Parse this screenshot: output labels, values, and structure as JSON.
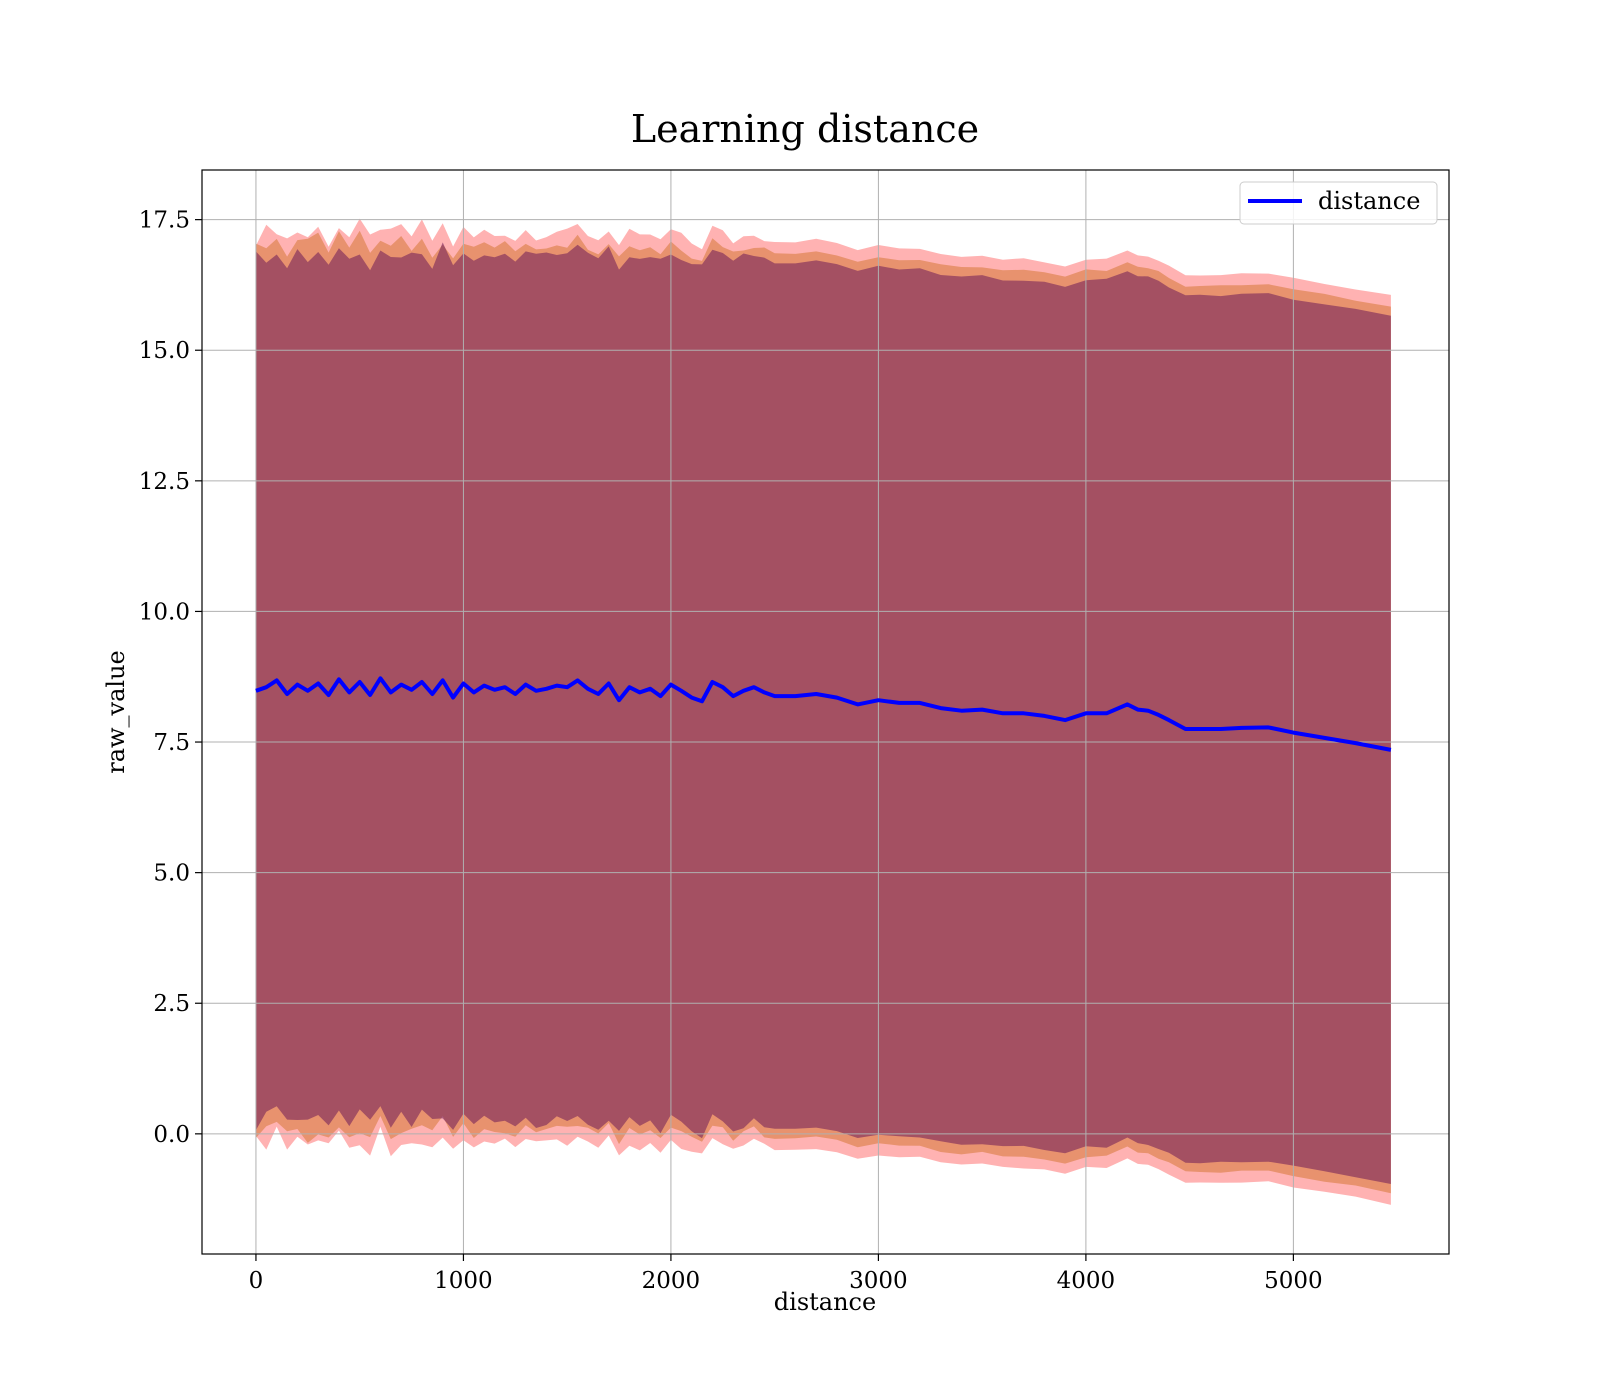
{
  "chart_data": {
    "type": "line",
    "title": "Learning distance",
    "xlabel": "distance",
    "ylabel": "raw_value",
    "xlim": [
      -260,
      5750
    ],
    "ylim": [
      -2.3,
      18.45
    ],
    "grid": true,
    "legend_position": "top-right",
    "x_ticks": [
      0,
      1000,
      2000,
      3000,
      4000,
      5000
    ],
    "y_ticks": [
      0.0,
      2.5,
      5.0,
      7.5,
      10.0,
      12.5,
      15.0,
      17.5
    ],
    "x_tick_labels": [
      "0",
      "1000",
      "2000",
      "3000",
      "4000",
      "5000"
    ],
    "y_tick_labels": [
      "0.0",
      "2.5",
      "5.0",
      "7.5",
      "10.0",
      "12.5",
      "15.0",
      "17.5"
    ],
    "series": [
      {
        "name": "distance",
        "color": "#0000ff",
        "x": [
          0,
          50,
          100,
          150,
          200,
          250,
          300,
          350,
          400,
          450,
          500,
          550,
          600,
          650,
          700,
          750,
          800,
          850,
          900,
          950,
          1000,
          1050,
          1100,
          1150,
          1200,
          1250,
          1300,
          1350,
          1400,
          1450,
          1500,
          1550,
          1600,
          1650,
          1700,
          1750,
          1800,
          1850,
          1900,
          1950,
          2000,
          2050,
          2100,
          2150,
          2200,
          2250,
          2300,
          2350,
          2400,
          2450,
          2500,
          2600,
          2700,
          2800,
          2900,
          3000,
          3100,
          3200,
          3300,
          3400,
          3500,
          3600,
          3700,
          3800,
          3900,
          4000,
          4100,
          4200,
          4250,
          4300,
          4350,
          4400,
          4480,
          4550,
          4650,
          4750,
          4880,
          5000,
          5150,
          5300,
          5470
        ],
        "y": [
          8.48,
          8.55,
          8.68,
          8.42,
          8.6,
          8.48,
          8.62,
          8.4,
          8.7,
          8.45,
          8.65,
          8.4,
          8.72,
          8.45,
          8.6,
          8.5,
          8.65,
          8.42,
          8.68,
          8.35,
          8.62,
          8.45,
          8.58,
          8.5,
          8.55,
          8.42,
          8.6,
          8.48,
          8.52,
          8.58,
          8.55,
          8.68,
          8.52,
          8.42,
          8.62,
          8.3,
          8.55,
          8.45,
          8.52,
          8.38,
          8.6,
          8.48,
          8.35,
          8.28,
          8.65,
          8.55,
          8.38,
          8.48,
          8.55,
          8.45,
          8.38,
          8.38,
          8.42,
          8.35,
          8.22,
          8.3,
          8.25,
          8.25,
          8.15,
          8.1,
          8.12,
          8.05,
          8.05,
          8.0,
          7.92,
          8.05,
          8.05,
          8.22,
          8.12,
          8.1,
          8.02,
          7.92,
          7.75,
          7.75,
          7.75,
          7.77,
          7.78,
          7.68,
          7.58,
          7.48,
          7.35
        ]
      }
    ]
  }
}
